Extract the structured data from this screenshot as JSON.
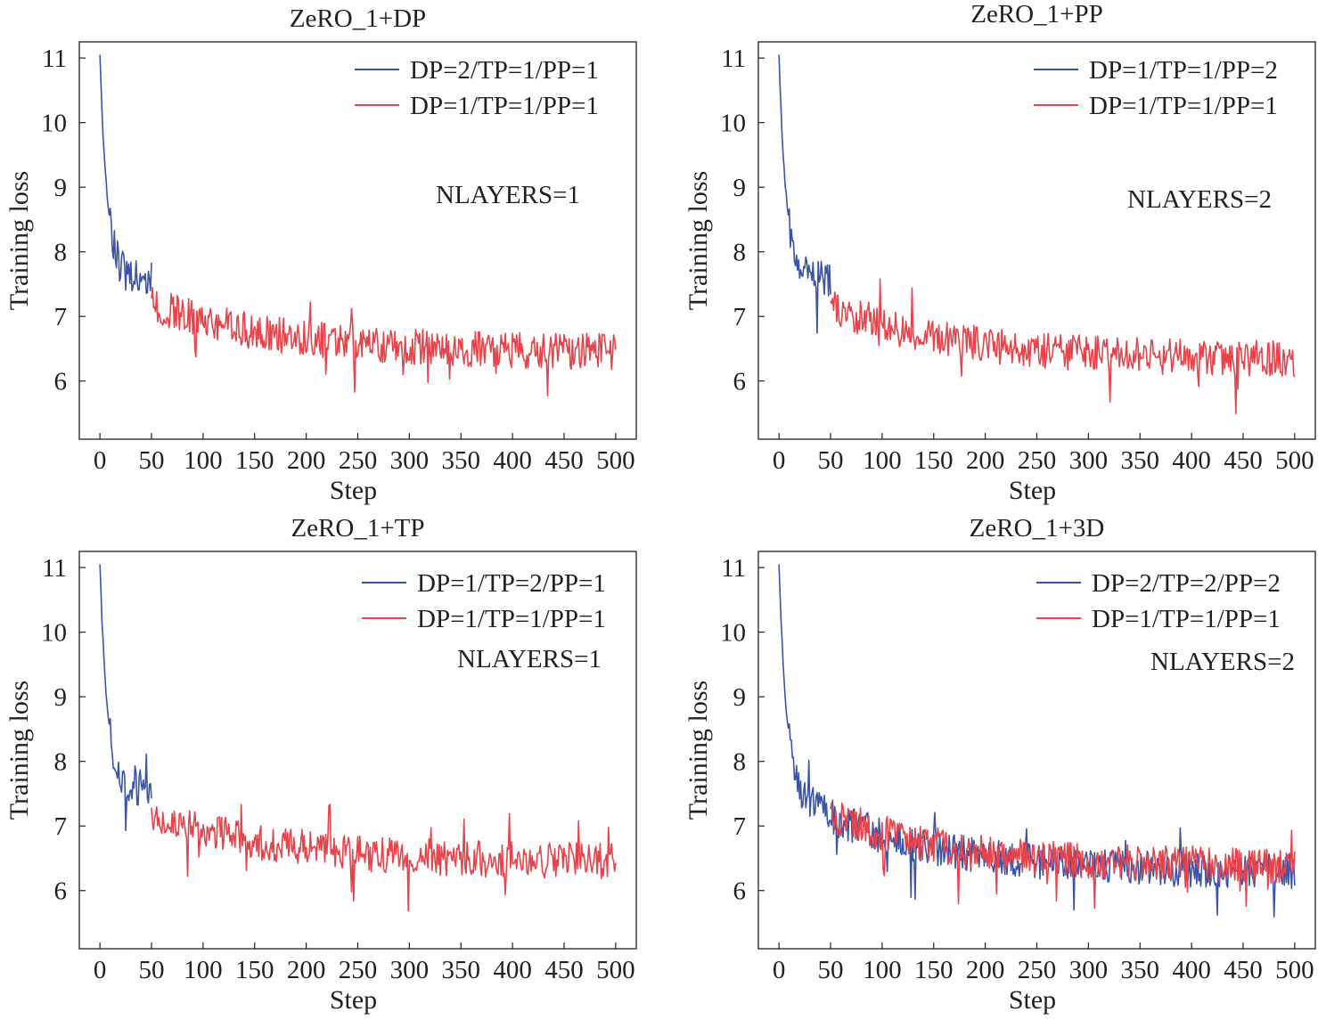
{
  "figure": {
    "colors": {
      "blue": "#3a55a8",
      "red": "#e8434a",
      "axis": "#231f20"
    }
  },
  "chart_data": [
    {
      "type": "line",
      "title": "ZeRO_1+DP",
      "xlabel": "Step",
      "ylabel": "Training loss",
      "xlim": [
        -20,
        520
      ],
      "ylim": [
        5.1,
        11.25
      ],
      "xticks": [
        0,
        50,
        100,
        150,
        200,
        250,
        300,
        350,
        400,
        450,
        500
      ],
      "yticks": [
        6,
        7,
        8,
        9,
        10,
        11
      ],
      "legend_position": "top-right",
      "annotation": "NLAYERS=1",
      "grid": false,
      "series": [
        {
          "name": "DP=2/TP=1/PP=1",
          "color": "#3a55a8",
          "x": [
            0,
            50
          ],
          "y_start": 11.05,
          "y_end": 7.5
        },
        {
          "name": "DP=1/TP=1/PP=1",
          "color": "#e8434a",
          "x": [
            50,
            500
          ],
          "y_start": 7.5,
          "y_end": 6.05
        }
      ]
    },
    {
      "type": "line",
      "title": "ZeRO_1+PP",
      "xlabel": "Step",
      "ylabel": "Training loss",
      "xlim": [
        -20,
        520
      ],
      "ylim": [
        5.1,
        11.25
      ],
      "xticks": [
        0,
        50,
        100,
        150,
        200,
        250,
        300,
        350,
        400,
        450,
        500
      ],
      "yticks": [
        6,
        7,
        8,
        9,
        10,
        11
      ],
      "legend_position": "top-right",
      "annotation": "NLAYERS=2",
      "grid": false,
      "series": [
        {
          "name": "DP=1/TP=1/PP=2",
          "color": "#3a55a8",
          "x": [
            0,
            50
          ],
          "y_start": 11.05,
          "y_end": 7.45
        },
        {
          "name": "DP=1/TP=1/PP=1",
          "color": "#e8434a",
          "x": [
            50,
            500
          ],
          "y_start": 7.45,
          "y_end": 5.9
        }
      ]
    },
    {
      "type": "line",
      "title": "ZeRO_1+TP",
      "xlabel": "Step",
      "ylabel": "Training loss",
      "xlim": [
        -20,
        520
      ],
      "ylim": [
        5.1,
        11.25
      ],
      "xticks": [
        0,
        50,
        100,
        150,
        200,
        250,
        300,
        350,
        400,
        450,
        500
      ],
      "yticks": [
        6,
        7,
        8,
        9,
        10,
        11
      ],
      "legend_position": "top-right",
      "annotation": "NLAYERS=1",
      "grid": false,
      "series": [
        {
          "name": "DP=1/TP=2/PP=1",
          "color": "#3a55a8",
          "x": [
            0,
            50
          ],
          "y_start": 11.05,
          "y_end": 7.5
        },
        {
          "name": "DP=1/TP=1/PP=1",
          "color": "#e8434a",
          "x": [
            50,
            500
          ],
          "y_start": 7.5,
          "y_end": 6.05
        }
      ]
    },
    {
      "type": "line",
      "title": "ZeRO_1+3D",
      "xlabel": "Step",
      "ylabel": "Training loss",
      "xlim": [
        -20,
        520
      ],
      "ylim": [
        5.1,
        11.25
      ],
      "xticks": [
        0,
        50,
        100,
        150,
        200,
        250,
        300,
        350,
        400,
        450,
        500
      ],
      "yticks": [
        6,
        7,
        8,
        9,
        10,
        11
      ],
      "legend_position": "top-right",
      "annotation": "NLAYERS=2",
      "grid": false,
      "series": [
        {
          "name": "DP=2/TP=2/PP=2",
          "color": "#3a55a8",
          "x": [
            0,
            500
          ],
          "y_start": 11.05,
          "y_end": 5.85
        },
        {
          "name": "DP=1/TP=1/PP=1",
          "color": "#e8434a",
          "x": [
            50,
            500
          ],
          "y_start": 7.5,
          "y_end": 5.95
        }
      ]
    }
  ]
}
